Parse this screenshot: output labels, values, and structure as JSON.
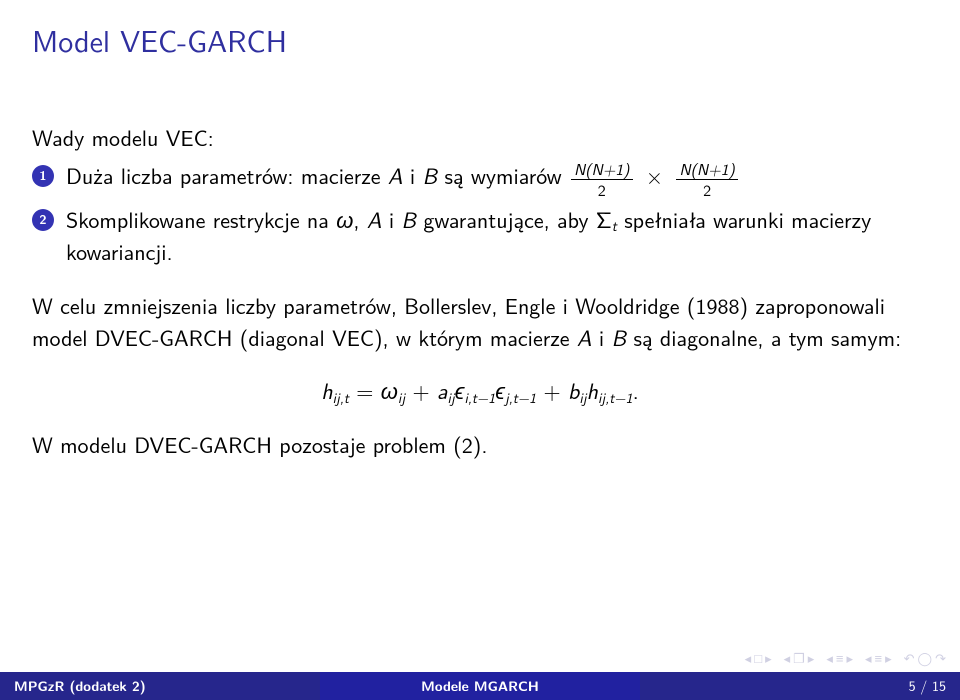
{
  "colors": {
    "text": "#000000",
    "title": "#2f2f9f",
    "bullet_bg": "#3333b3",
    "bullet_fg": "#ffffff",
    "foot_left_bg": "#26268c",
    "foot_left_fg": "#ffffff",
    "foot_mid_bg": "#2121a0",
    "foot_mid_fg": "#ffffff",
    "foot_right_bg": "#26268c",
    "foot_right_fg": "#ffffff",
    "nav_sym": "#c8c8de"
  },
  "title": "Model VEC-GARCH",
  "lead": "Wady modelu VEC:",
  "item1": {
    "num": "1",
    "pre": "Duża liczba parametrów: macierze ",
    "A": "A",
    "and1": " i ",
    "B": "B",
    "post": " są wymiarów ",
    "frac_num": "N(N+1)",
    "frac_den": "2",
    "times": "×"
  },
  "item2": {
    "num": "2",
    "pre": "Skomplikowane restrykcje na ",
    "omega": "ω",
    "mid1": ", ",
    "A": "A",
    "and": " i ",
    "B": "B",
    "mid2": " gwarantujące, aby Σ",
    "tsub": "t",
    "post": " spełniała warunki macierzy kowariancji."
  },
  "para1": {
    "p1": "W celu zmniejszenia liczby parametrów, Bollerslev, Engle i Wooldridge (1988) zaproponowali model DVEC-GARCH (diagonal VEC), w którym macierze ",
    "A": "A",
    "and": " i ",
    "B": "B",
    "p2": " są diagonalne, a tym samym:"
  },
  "equation": {
    "hsym": "h",
    "ij_t": "ij,t",
    "eq": " = ",
    "omega": "ω",
    "ij": "ij",
    "plus1": " + ",
    "a": "a",
    "eps": "ϵ",
    "i_tm1": "i,t−1",
    "j_tm1": "j,t−1",
    "plus2": " + ",
    "b": "b",
    "dot": "."
  },
  "para2": "W modelu DVEC-GARCH pozostaje problem (2).",
  "footer": {
    "left": "MPGzR (dodatek 2)",
    "mid": "Modele MGARCH",
    "right": "5 / 15"
  },
  "nav": {
    "g1a": "◂",
    "g1b": "□",
    "g1c": "▸",
    "g2a": "◂",
    "g2b": "❐",
    "g2c": "▸",
    "g3a": "◂",
    "g3b": "≡",
    "g3c": "▸",
    "g4a": "◂",
    "g4b": "≡",
    "g4c": "▸",
    "back": "↶",
    "circ": "◯",
    "fwd": "↷"
  }
}
